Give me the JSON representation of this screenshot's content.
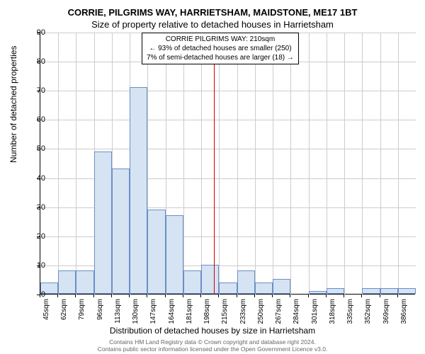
{
  "chart": {
    "type": "histogram",
    "title_line1": "CORRIE, PILGRIMS WAY, HARRIETSHAM, MAIDSTONE, ME17 1BT",
    "title_line2": "Size of property relative to detached houses in Harrietsham",
    "ylabel": "Number of detached properties",
    "xlabel": "Distribution of detached houses by size in Harrietsham",
    "ylim": [
      0,
      90
    ],
    "ytick_step": 10,
    "yticks": [
      0,
      10,
      20,
      30,
      40,
      50,
      60,
      70,
      80,
      90
    ],
    "xtick_step": 17,
    "xtick_start": 45,
    "xtick_labels": [
      "45sqm",
      "62sqm",
      "79sqm",
      "96sqm",
      "113sqm",
      "130sqm",
      "147sqm",
      "164sqm",
      "181sqm",
      "198sqm",
      "215sqm",
      "233sqm",
      "250sqm",
      "267sqm",
      "284sqm",
      "301sqm",
      "318sqm",
      "335sqm",
      "352sqm",
      "369sqm",
      "386sqm"
    ],
    "bar_count": 21,
    "values": [
      4,
      8,
      8,
      49,
      43,
      71,
      29,
      27,
      8,
      10,
      4,
      8,
      4,
      5,
      0,
      1,
      2,
      0,
      2,
      2,
      2
    ],
    "bar_fill_color": "#d6e3f3",
    "bar_border_color": "#6a8fc5",
    "grid_color": "#cccccc",
    "background_color": "#ffffff",
    "reference_line_x": 210,
    "reference_line_color": "#cc0000",
    "annotation": {
      "line1": "CORRIE PILGRIMS WAY: 210sqm",
      "line2": "← 93% of detached houses are smaller (250)",
      "line3": "7% of semi-detached houses are larger (18) →"
    },
    "footer_line1": "Contains HM Land Registry data © Crown copyright and database right 2024.",
    "footer_line2": "Contains public sector information licensed under the Open Government Licence v3.0."
  }
}
